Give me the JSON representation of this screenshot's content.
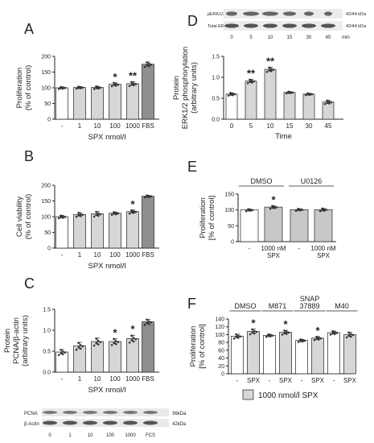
{
  "colors": {
    "white_bar": "#ffffff",
    "light_bar": "#d6d6d6",
    "mid_bar": "#c8c8c8",
    "dark_bar": "#8f8f8f",
    "ink": "#222222"
  },
  "chart_data": [
    {
      "panel": "A",
      "type": "bar",
      "categories": [
        "-",
        "1",
        "10",
        "100",
        "1000",
        "FBS"
      ],
      "values": [
        100,
        101,
        101,
        111,
        113,
        175
      ],
      "errors": [
        3,
        3,
        4,
        5,
        6,
        7
      ],
      "bar_colors": [
        "#ffffff",
        "#d6d6d6",
        "#d6d6d6",
        "#d6d6d6",
        "#d6d6d6",
        "#8f8f8f"
      ],
      "significance": [
        "",
        "",
        "",
        "*",
        "**",
        ""
      ],
      "ylabel": [
        "Proliferation",
        "(% of control)"
      ],
      "xlabel": "SPX nmol/l",
      "ylim": [
        0,
        200
      ],
      "yticks": [
        0,
        50,
        100,
        150,
        200
      ]
    },
    {
      "panel": "B",
      "type": "bar",
      "categories": [
        "-",
        "1",
        "10",
        "100",
        "1000",
        "FBS"
      ],
      "values": [
        100,
        107,
        109,
        111,
        116,
        165
      ],
      "errors": [
        4,
        6,
        7,
        4,
        5,
        3
      ],
      "bar_colors": [
        "#ffffff",
        "#d6d6d6",
        "#d6d6d6",
        "#d6d6d6",
        "#d6d6d6",
        "#8f8f8f"
      ],
      "significance": [
        "",
        "",
        "",
        "",
        "*",
        ""
      ],
      "ylabel": [
        "Cell viability",
        "(% of control)"
      ],
      "xlabel": "SPX nmol/l",
      "ylim": [
        0,
        200
      ],
      "yticks": [
        0,
        50,
        100,
        150,
        200
      ]
    },
    {
      "panel": "C",
      "type": "bar",
      "categories": [
        "-",
        "1",
        "10",
        "100",
        "1000",
        "FBS"
      ],
      "values": [
        0.48,
        0.63,
        0.73,
        0.73,
        0.8,
        1.2
      ],
      "errors": [
        0.06,
        0.08,
        0.08,
        0.07,
        0.08,
        0.06
      ],
      "bar_colors": [
        "#ffffff",
        "#d6d6d6",
        "#d6d6d6",
        "#d6d6d6",
        "#d6d6d6",
        "#8f8f8f"
      ],
      "significance": [
        "",
        "",
        "",
        "*",
        "*",
        ""
      ],
      "ylabel": [
        "Protein",
        "PCNA/β-actin",
        "(arbitrary units)"
      ],
      "xlabel": "SPX nmol/l",
      "ylim": [
        0,
        1.5
      ],
      "yticks": [
        0.0,
        0.5,
        1.0,
        1.5
      ],
      "blot": {
        "rows": [
          "PCNA",
          "β-Actin"
        ],
        "sizes": [
          "36kDa",
          "42kDa"
        ],
        "lanes": [
          "0",
          "1",
          "10",
          "100",
          "1000",
          "FCS"
        ]
      }
    },
    {
      "panel": "D",
      "type": "bar",
      "categories": [
        "0",
        "5",
        "10",
        "15",
        "30",
        "45"
      ],
      "values": [
        0.6,
        0.91,
        1.19,
        0.64,
        0.6,
        0.41
      ],
      "errors": [
        0.03,
        0.04,
        0.05,
        0.02,
        0.02,
        0.04
      ],
      "bar_colors": [
        "#ffffff",
        "#d6d6d6",
        "#d6d6d6",
        "#d6d6d6",
        "#d6d6d6",
        "#d6d6d6"
      ],
      "significance": [
        "",
        "**",
        "**",
        "",
        "",
        ""
      ],
      "ylabel": [
        "Protein",
        "ERK1/2 phosphorylation",
        "(arbitrary units)"
      ],
      "xlabel": "Time",
      "ylim": [
        0,
        1.5
      ],
      "yticks": [
        0.0,
        0.5,
        1.0,
        1.5
      ],
      "blot": {
        "rows": [
          "pERK1/2",
          "Total ERK1/2"
        ],
        "sizes": [
          "42/44 kDa",
          "42/44 kDa"
        ],
        "lanes": [
          "0",
          "5",
          "10",
          "15",
          "30",
          "45"
        ],
        "unit": "min"
      }
    },
    {
      "panel": "E",
      "type": "bar",
      "categories": [
        "-",
        "1000 nM\nSPX",
        "-",
        "1000 nM\nSPX"
      ],
      "values": [
        100,
        109,
        101,
        101
      ],
      "errors": [
        3,
        4,
        3,
        4
      ],
      "bar_colors": [
        "#ffffff",
        "#c8c8c8",
        "#c8c8c8",
        "#c8c8c8"
      ],
      "significance": [
        "",
        "*",
        "",
        ""
      ],
      "groups": [
        "DMSO",
        "U0126"
      ],
      "ylabel": [
        "Proliferation",
        "[% of control]"
      ],
      "ylim": [
        0,
        150
      ],
      "yticks": [
        0,
        50,
        100,
        150
      ]
    },
    {
      "panel": "F",
      "type": "bar",
      "categories": [
        "-",
        "SPX",
        "-",
        "SPX",
        "-",
        "SPX",
        "-",
        "SPX"
      ],
      "values": [
        96,
        108,
        98,
        106,
        85,
        91,
        105,
        100
      ],
      "errors": [
        5,
        6,
        3,
        5,
        3,
        4,
        4,
        6
      ],
      "bar_colors": [
        "#ffffff",
        "#d6d6d6",
        "#ffffff",
        "#d6d6d6",
        "#ffffff",
        "#d6d6d6",
        "#ffffff",
        "#d6d6d6"
      ],
      "significance": [
        "",
        "*",
        "",
        "*",
        "",
        "*",
        "",
        ""
      ],
      "groups": [
        "DMSO",
        "M871",
        "SNAP\n37889",
        "M40"
      ],
      "ylabel": [
        "Proliferation",
        "[% of control]"
      ],
      "ylim": [
        0,
        140
      ],
      "yticks": [
        0,
        20,
        40,
        60,
        80,
        100,
        120,
        140
      ],
      "legend": "1000 nmol/l SPX"
    }
  ]
}
